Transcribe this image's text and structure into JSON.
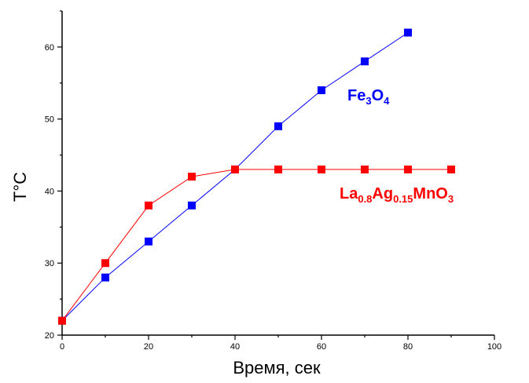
{
  "chart_data": {
    "type": "line",
    "xlabel": "Время, сек",
    "ylabel": "T°C",
    "xlim": [
      0,
      100
    ],
    "ylim": [
      20,
      65
    ],
    "x_ticks": [
      0,
      20,
      40,
      60,
      80,
      100
    ],
    "y_ticks": [
      20,
      30,
      40,
      50,
      60
    ],
    "grid": false,
    "series": [
      {
        "name": "Fe3O4",
        "label_parts": [
          {
            "text": "Fe",
            "sub": false
          },
          {
            "text": "3",
            "sub": true
          },
          {
            "text": "O",
            "sub": false
          },
          {
            "text": "4",
            "sub": true
          }
        ],
        "color": "#0000ff",
        "x": [
          0,
          10,
          20,
          30,
          40,
          50,
          60,
          70,
          80
        ],
        "y": [
          22,
          28,
          33,
          38,
          43,
          49,
          54,
          58,
          62
        ]
      },
      {
        "name": "La0.8Ag0.15MnO3",
        "label_parts": [
          {
            "text": "La",
            "sub": false
          },
          {
            "text": "0.8",
            "sub": true
          },
          {
            "text": "Ag",
            "sub": false
          },
          {
            "text": "0.15",
            "sub": true
          },
          {
            "text": "MnO",
            "sub": false
          },
          {
            "text": "3",
            "sub": true
          }
        ],
        "color": "#ff0000",
        "x": [
          0,
          10,
          20,
          30,
          40,
          50,
          60,
          70,
          80,
          90
        ],
        "y": [
          22,
          30,
          38,
          42,
          43,
          43,
          43,
          43,
          43,
          43
        ]
      }
    ]
  }
}
